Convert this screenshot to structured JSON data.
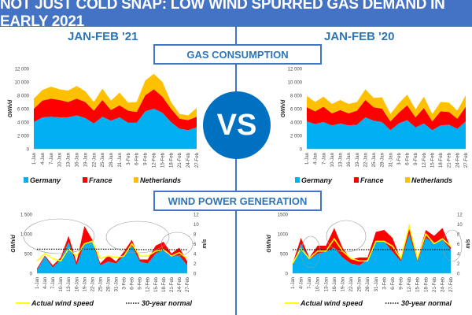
{
  "header": {
    "title": "NOT JUST COLD SNAP: LOW WIND SPURRED GAS DEMAND IN EARLY 2021"
  },
  "periods": {
    "left": "JAN-FEB '21",
    "right": "JAN-FEB '20"
  },
  "sections": {
    "gas": "GAS CONSUMPTION",
    "wind": "WIND POWER GENERATION"
  },
  "vs_label": "VS",
  "colors": {
    "germany": "#00B0F0",
    "france": "#FF0000",
    "netherlands": "#FFC000",
    "wind_speed": "#FFFF00",
    "accent": "#4472C4"
  },
  "chart_data": [
    {
      "id": "gas-2021",
      "type": "area",
      "stacked": true,
      "ylabel": "GWh/d",
      "ylim": [
        0,
        12000
      ],
      "yticks": [
        "0",
        "2 000",
        "4 000",
        "6 000",
        "8 000",
        "10 000",
        "12 000"
      ],
      "categories": [
        "1-Jan",
        "4-Jan",
        "7-Jan",
        "10-Jan",
        "13-Jan",
        "16-Jan",
        "19-Jan",
        "22-Jan",
        "25-Jan",
        "28-Jan",
        "31-Jan",
        "3-Feb",
        "6-Feb",
        "9-Feb",
        "12-Feb",
        "15-Feb",
        "18-Feb",
        "21-Feb",
        "24-Feb",
        "27-Feb"
      ],
      "series": [
        {
          "name": "Germany",
          "values": [
            4000,
            4700,
            4800,
            4700,
            4700,
            5000,
            4600,
            3800,
            4800,
            4200,
            4700,
            3900,
            3900,
            5600,
            6000,
            5400,
            4000,
            3000,
            2800,
            3200
          ]
        },
        {
          "name": "France",
          "values": [
            2000,
            2500,
            2700,
            2600,
            2300,
            2500,
            2400,
            1900,
            2500,
            1600,
            1800,
            1800,
            1600,
            2400,
            2900,
            2400,
            2000,
            1500,
            1500,
            1600
          ]
        },
        {
          "name": "Netherlands",
          "values": [
            1500,
            1600,
            1800,
            1600,
            1700,
            1900,
            1600,
            1300,
            1700,
            1400,
            1900,
            1200,
            1500,
            2200,
            2300,
            2200,
            1000,
            700,
            700,
            1300
          ]
        }
      ],
      "legend": "bottom"
    },
    {
      "id": "gas-2020",
      "type": "area",
      "stacked": true,
      "ylabel": "GWh/d",
      "ylim": [
        0,
        12000
      ],
      "yticks": [
        "0",
        "2 000",
        "4 000",
        "6 000",
        "8 000",
        "10 000",
        "12 000"
      ],
      "categories": [
        "1-Jan",
        "4-Jan",
        "7-Jan",
        "10-Jan",
        "13-Jan",
        "16-Jan",
        "19-Jan",
        "22-Jan",
        "25-Jan",
        "28-Jan",
        "31-Jan",
        "3-Feb",
        "6-Feb",
        "9-Feb",
        "12-Feb",
        "15-Feb",
        "18-Feb",
        "21-Feb",
        "24-Feb",
        "27-Feb"
      ],
      "series": [
        {
          "name": "Germany",
          "values": [
            4100,
            3700,
            4000,
            3500,
            3800,
            3500,
            3600,
            4700,
            4200,
            4000,
            2800,
            3800,
            4300,
            3200,
            3800,
            2800,
            3500,
            3600,
            3000,
            4100
          ]
        },
        {
          "name": "France",
          "values": [
            2100,
            1900,
            2300,
            1800,
            2000,
            1800,
            2100,
            2600,
            2000,
            2000,
            1300,
            1600,
            2200,
            1500,
            2300,
            1300,
            2100,
            1900,
            1500,
            2200
          ]
        },
        {
          "name": "Netherlands",
          "values": [
            1700,
            1400,
            1500,
            1400,
            1500,
            1400,
            1300,
            1600,
            1400,
            1700,
            1100,
            1400,
            1600,
            1200,
            1700,
            1100,
            1400,
            1400,
            1200,
            1700
          ]
        }
      ],
      "legend": "bottom"
    },
    {
      "id": "wind-2021",
      "type": "area",
      "stacked": true,
      "ylabel": "GWh/d",
      "ylim": [
        0,
        1500
      ],
      "yticks": [
        "0",
        "500",
        "1 000",
        "1 500"
      ],
      "y2label": "m/s",
      "y2lim": [
        0,
        12
      ],
      "y2ticks": [
        "0",
        "2",
        "4",
        "6",
        "8",
        "10",
        "12"
      ],
      "categories": [
        "1-Jan",
        "4-Jan",
        "7-Jan",
        "10-Jan",
        "13-Jan",
        "16-Jan",
        "19-Jan",
        "22-Jan",
        "25-Jan",
        "28-Jan",
        "31-Jan",
        "3-Feb",
        "6-Feb",
        "9-Feb",
        "12-Feb",
        "15-Feb",
        "18-Feb",
        "21-Feb",
        "24-Feb",
        "27-Feb"
      ],
      "series": [
        {
          "values": [
            80,
            420,
            150,
            350,
            800,
            200,
            750,
            800,
            200,
            300,
            250,
            450,
            700,
            300,
            250,
            500,
            600,
            450,
            450,
            200
          ]
        },
        {
          "values": [
            40,
            30,
            50,
            50,
            150,
            80,
            450,
            50,
            50,
            150,
            50,
            100,
            150,
            50,
            100,
            200,
            200,
            50,
            200,
            100
          ]
        }
      ],
      "lines": [
        {
          "name": "Actual wind speed",
          "axis": "y2",
          "values": [
            2.5,
            4,
            3,
            2.5,
            5,
            3.5,
            6,
            6.5,
            3,
            3.5,
            3.2,
            3.5,
            6,
            3.5,
            3.5,
            4.5,
            4.8,
            3.5,
            4.2,
            3
          ]
        },
        {
          "name": "30-year normal",
          "axis": "y2",
          "style": "dotted",
          "values": [
            4.9,
            4.9,
            4.9,
            4.9,
            4.9,
            4.9,
            4.9,
            4.9,
            4.9,
            4.9,
            4.9,
            4.9,
            4.9,
            4.8,
            4.8,
            4.8,
            4.8,
            4.8,
            4.8,
            4.8
          ]
        }
      ],
      "legend": "bottom"
    },
    {
      "id": "wind-2020",
      "type": "area",
      "stacked": true,
      "ylabel": "GWh/d",
      "ylim": [
        0,
        1500
      ],
      "yticks": [
        "0",
        "500",
        "1000",
        "1500"
      ],
      "y2label": "m/s",
      "y2lim": [
        0,
        12
      ],
      "y2ticks": [
        "0",
        "2",
        "4",
        "6",
        "8",
        "10",
        "12"
      ],
      "categories": [
        "1-Jan",
        "4-Jan",
        "7-Jan",
        "10-Jan",
        "13-Jan",
        "16-Jan",
        "19-Jan",
        "22-Jan",
        "25-Jan",
        "28-Jan",
        "31-Jan",
        "3-Feb",
        "6-Feb",
        "9-Feb",
        "12-Feb",
        "15-Feb",
        "18-Feb",
        "21-Feb",
        "24-Feb",
        "27-Feb"
      ],
      "series": [
        {
          "values": [
            200,
            750,
            350,
            500,
            550,
            650,
            400,
            250,
            200,
            350,
            800,
            800,
            550,
            300,
            1000,
            300,
            900,
            750,
            850,
            600
          ]
        },
        {
          "values": [
            50,
            150,
            50,
            200,
            150,
            500,
            250,
            100,
            200,
            50,
            250,
            300,
            350,
            50,
            250,
            100,
            200,
            200,
            300,
            50
          ]
        }
      ],
      "lines": [
        {
          "name": "Actual wind speed",
          "axis": "y2",
          "values": [
            2,
            5,
            3,
            4.5,
            4.5,
            7,
            4.5,
            3,
            2.5,
            2.5,
            6.5,
            6.5,
            5.5,
            3,
            9.5,
            3,
            8,
            6,
            7,
            5.5
          ]
        },
        {
          "name": "30-year normal",
          "axis": "y2",
          "style": "dotted",
          "values": [
            4.8,
            4.8,
            4.8,
            4.8,
            4.8,
            4.8,
            4.8,
            4.8,
            4.8,
            4.8,
            4.8,
            4.8,
            4.8,
            4.8,
            4.8,
            4.8,
            4.8,
            4.8,
            4.8,
            4.8
          ]
        }
      ],
      "legend": "bottom"
    }
  ]
}
